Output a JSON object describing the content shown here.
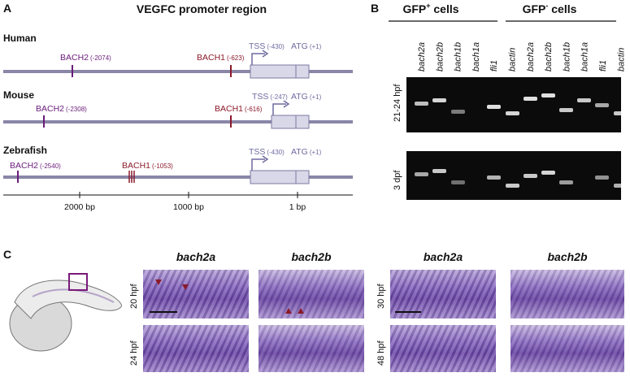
{
  "panel_labels": {
    "a": "A",
    "b": "B",
    "c": "C"
  },
  "panel_a": {
    "title": "VEGFC promoter region",
    "species": [
      {
        "name": "Human",
        "bach2": "BACH2",
        "bach2_pos": "(-2074)",
        "bach1": "BACH1",
        "bach1_pos": "(-623)",
        "tss": "TSS",
        "tss_pos": "(-430)",
        "atg": "ATG",
        "atg_pos": "(+1)"
      },
      {
        "name": "Mouse",
        "bach2": "BACH2",
        "bach2_pos": "(-2308)",
        "bach1": "BACH1",
        "bach1_pos": "(-616)",
        "tss": "TSS",
        "tss_pos": "(-247)",
        "atg": "ATG",
        "atg_pos": "(+1)"
      },
      {
        "name": "Zebrafish",
        "bach2": "BACH2",
        "bach2_pos": "(-2540)",
        "bach1": "BACH1",
        "bach1_pos": "(-1053)",
        "tss": "TSS",
        "tss_pos": "(-430)",
        "atg": "ATG",
        "atg_pos": "(+1)"
      }
    ],
    "scale_labels": [
      "2000 bp",
      "1000 bp",
      "1 bp"
    ]
  },
  "panel_b": {
    "group_pos": "GFP",
    "group_pos_sup": "+",
    "group_neg": "GFP",
    "group_neg_sup": "-",
    "group_suffix": " cells",
    "lanes": [
      "bach2a",
      "bach2b",
      "bach1b",
      "bach1a",
      "fli1",
      "bactin",
      "bach2a",
      "bach2b",
      "bach1b",
      "bach1a",
      "fli1",
      "bactin"
    ],
    "rows": [
      "21-24 hpf",
      "3 dpf"
    ]
  },
  "panel_c": {
    "col_headers": [
      "bach2a",
      "bach2b",
      "bach2a",
      "bach2b"
    ],
    "row_labels_left": [
      "20 hpf",
      "24 hpf"
    ],
    "row_labels_right": [
      "30 hpf",
      "48 hpf"
    ]
  },
  "colors": {
    "line": "#8a86a8",
    "bach2": "#6a1b7a",
    "bach1": "#8b1a2a",
    "tss": "#6e6aa0",
    "stain": "#6b4a9e"
  }
}
